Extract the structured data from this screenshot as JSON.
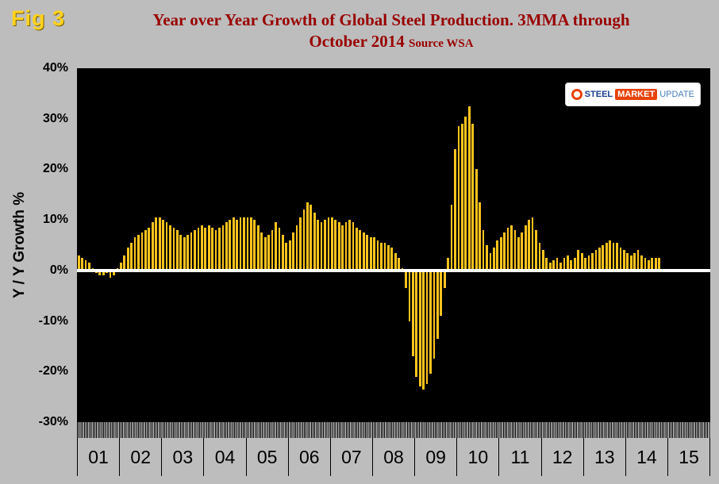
{
  "figure": {
    "fig_label": "Fig 3",
    "title_line1": "Year over Year Growth of Global Steel Production. 3MMA through",
    "title_line2": "October 2014",
    "source": "Source WSA",
    "y_axis_title": "Y / Y Growth %"
  },
  "logo": {
    "word1": "STEEL",
    "word2": "MARKET",
    "word3": "UPDATE"
  },
  "colors": {
    "background": "#BDBDBD",
    "plot_background": "#000000",
    "bar": "#FFC41E",
    "title": "#990000",
    "fig_label": "#FFD21E",
    "zero_line": "#FFFFFF"
  },
  "chart_data": {
    "type": "bar",
    "title": "Year over Year Growth of Global Steel Production. 3MMA through October 2014",
    "source": "Source WSA",
    "ylabel": "Y / Y Growth %",
    "ylim": [
      -30,
      40
    ],
    "grid": false,
    "frequency": "monthly",
    "start": "2001-01",
    "end": "2014-10",
    "yticks": [
      {
        "v": 40,
        "label": "40%"
      },
      {
        "v": 30,
        "label": "30%"
      },
      {
        "v": 20,
        "label": "20%"
      },
      {
        "v": 10,
        "label": "10%"
      },
      {
        "v": 0,
        "label": "0%"
      },
      {
        "v": -10,
        "label": "-10%"
      },
      {
        "v": -20,
        "label": "-20%"
      },
      {
        "v": -30,
        "label": "-30%"
      }
    ],
    "x_years": [
      "01",
      "02",
      "03",
      "04",
      "05",
      "06",
      "07",
      "08",
      "09",
      "10",
      "11",
      "12",
      "13",
      "14",
      "15"
    ],
    "series": [
      {
        "name": "Y/Y growth % (3MMA, monthly Jan-2001 to Oct-2014)",
        "values": [
          3,
          2.5,
          2,
          1.5,
          0.5,
          -0.5,
          -1,
          -1,
          -0.5,
          -1.5,
          -1,
          0.5,
          1.5,
          3,
          4.5,
          5.5,
          6.5,
          7,
          7.5,
          8,
          8.5,
          9.5,
          10.5,
          10.5,
          10,
          9.5,
          9,
          8.5,
          8,
          7,
          6.5,
          7,
          7.5,
          8,
          8.5,
          9,
          8.5,
          9,
          8.5,
          8,
          8.5,
          9,
          9.5,
          10,
          10.5,
          10,
          10.5,
          10.5,
          10.5,
          10.5,
          10,
          9,
          7.5,
          6.5,
          7,
          8,
          9.5,
          8.5,
          7,
          5.5,
          6,
          7.5,
          9,
          10.5,
          12,
          13.5,
          13,
          11.5,
          10,
          9.5,
          10,
          10.5,
          10.5,
          10,
          9.5,
          9,
          9.5,
          10,
          9.5,
          8.5,
          8,
          7.5,
          7,
          6.5,
          6.5,
          6,
          5.5,
          5.5,
          5,
          4.5,
          3.5,
          2.5,
          0.5,
          -3.5,
          -10,
          -17,
          -21,
          -23,
          -23.5,
          -22.5,
          -20.5,
          -17.5,
          -13.5,
          -9,
          -3.5,
          2.5,
          13,
          24,
          28.5,
          29,
          30.5,
          32.5,
          29,
          20,
          13.5,
          8,
          5,
          3.5,
          4.5,
          6,
          6.5,
          7.5,
          8.5,
          9,
          8,
          6.5,
          7.5,
          9,
          10,
          10.5,
          8,
          5.5,
          4,
          2.5,
          1.5,
          2,
          2.5,
          1.5,
          2.5,
          3,
          2,
          2.5,
          4,
          3.5,
          2.5,
          3,
          3.5,
          4,
          4.5,
          5,
          5.5,
          6,
          5.5,
          5.5,
          4.5,
          4,
          3.5,
          3,
          3.5,
          4,
          3,
          2.5,
          2,
          2.5,
          2.5,
          2.5
        ]
      }
    ]
  }
}
